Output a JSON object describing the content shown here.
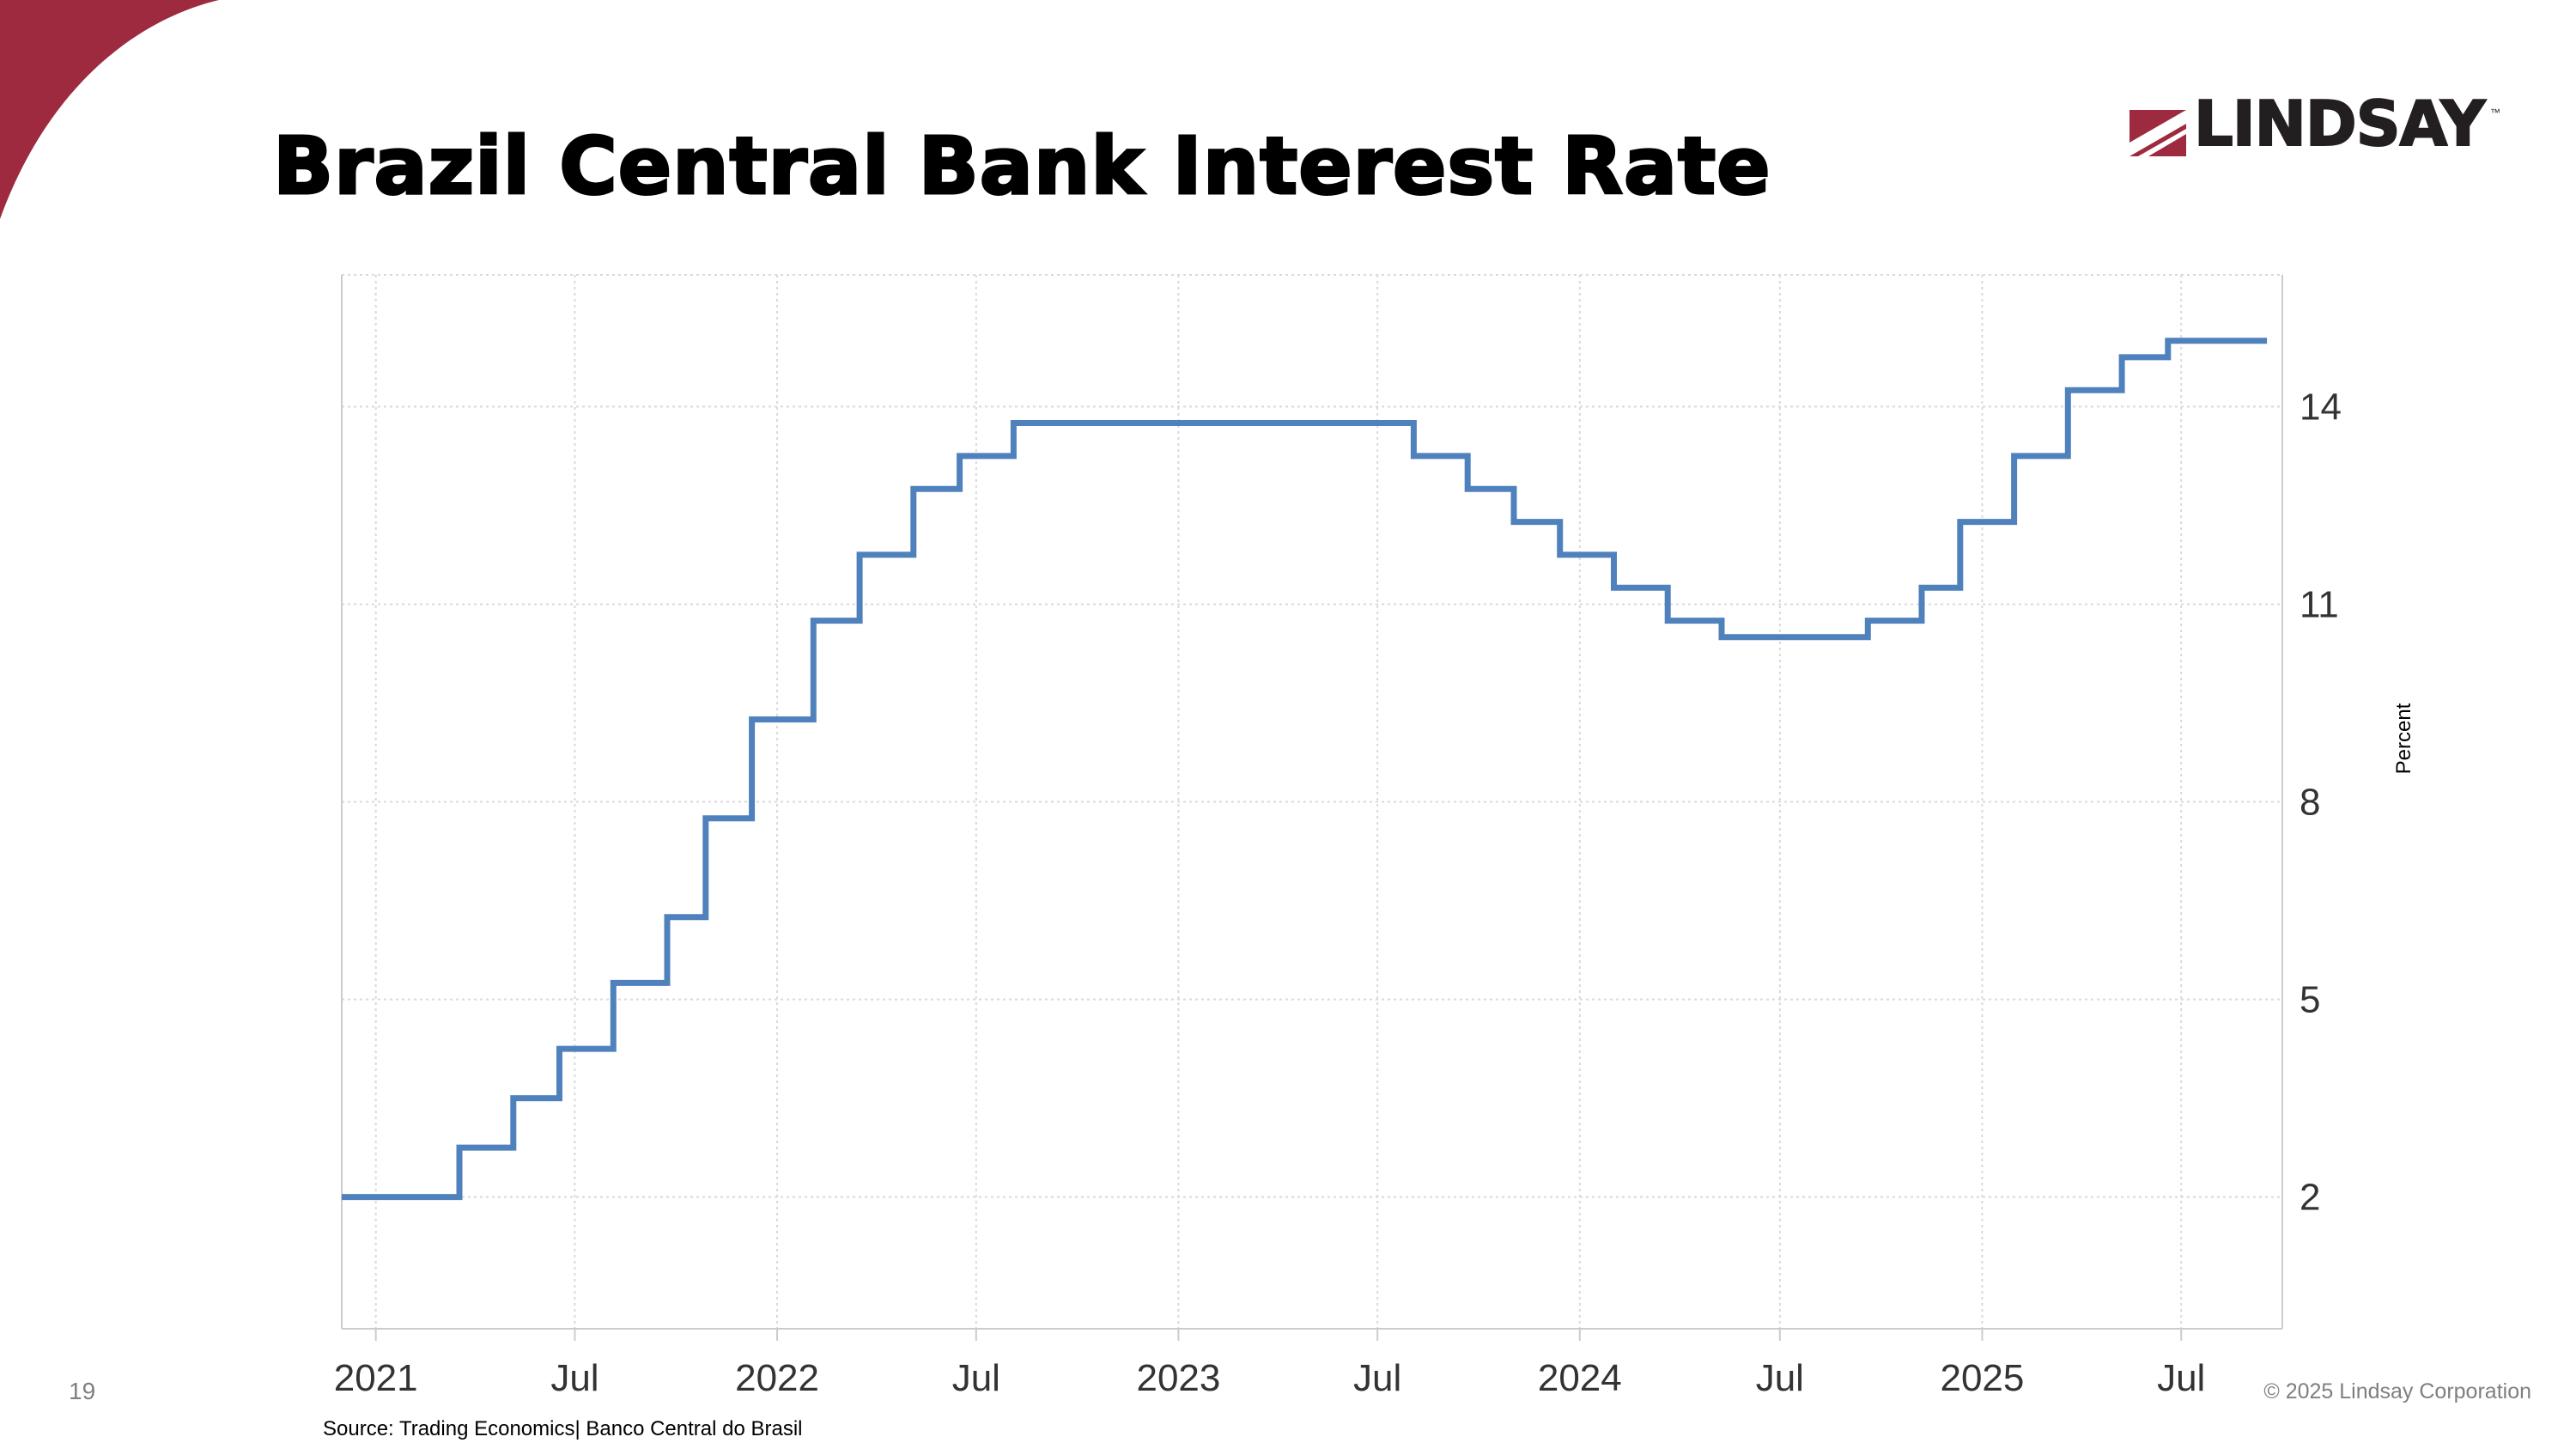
{
  "slide": {
    "title": "Brazil Central Bank Interest Rate",
    "page_number": "19",
    "copyright": "© 2025 Lindsay Corporation",
    "source": "Source: Trading Economics| Banco Central do Brasil"
  },
  "logo": {
    "text": "LINDSAY",
    "tm": "™",
    "accent_color": "#9e2a3f"
  },
  "colors": {
    "corner_accent": "#9e2a3f",
    "line": "#4f81bd",
    "grid": "#d9d9d9",
    "axis": "#cccccc"
  },
  "chart_data": {
    "type": "line",
    "step": true,
    "title": "",
    "xlabel": "",
    "ylabel": "Percent",
    "y_axis_position": "right",
    "grid": true,
    "ylim": [
      0,
      16
    ],
    "xlim": [
      "2020-12-01",
      "2025-10-01"
    ],
    "y_ticks": [
      2,
      5,
      8,
      11,
      14
    ],
    "x_ticks": [
      {
        "date": "2021-01-01",
        "label": "2021"
      },
      {
        "date": "2021-07-01",
        "label": "Jul"
      },
      {
        "date": "2022-01-01",
        "label": "2022"
      },
      {
        "date": "2022-07-01",
        "label": "Jul"
      },
      {
        "date": "2023-01-01",
        "label": "2023"
      },
      {
        "date": "2023-07-01",
        "label": "Jul"
      },
      {
        "date": "2024-01-01",
        "label": "2024"
      },
      {
        "date": "2024-07-01",
        "label": "Jul"
      },
      {
        "date": "2025-01-01",
        "label": "2025"
      },
      {
        "date": "2025-07-01",
        "label": "Jul"
      }
    ],
    "series": [
      {
        "name": "",
        "color": "#4f81bd",
        "points": [
          {
            "x": "2020-12-01",
            "y": 2.0
          },
          {
            "x": "2021-03-18",
            "y": 2.75
          },
          {
            "x": "2021-05-06",
            "y": 3.5
          },
          {
            "x": "2021-06-17",
            "y": 4.25
          },
          {
            "x": "2021-08-05",
            "y": 5.25
          },
          {
            "x": "2021-09-23",
            "y": 6.25
          },
          {
            "x": "2021-10-28",
            "y": 7.75
          },
          {
            "x": "2021-12-09",
            "y": 9.25
          },
          {
            "x": "2022-02-03",
            "y": 10.75
          },
          {
            "x": "2022-03-17",
            "y": 11.75
          },
          {
            "x": "2022-05-05",
            "y": 12.75
          },
          {
            "x": "2022-06-16",
            "y": 13.25
          },
          {
            "x": "2022-08-04",
            "y": 13.75
          },
          {
            "x": "2023-08-03",
            "y": 13.25
          },
          {
            "x": "2023-09-21",
            "y": 12.75
          },
          {
            "x": "2023-11-02",
            "y": 12.25
          },
          {
            "x": "2023-12-14",
            "y": 11.75
          },
          {
            "x": "2024-02-01",
            "y": 11.25
          },
          {
            "x": "2024-03-21",
            "y": 10.75
          },
          {
            "x": "2024-05-09",
            "y": 10.5
          },
          {
            "x": "2024-09-19",
            "y": 10.75
          },
          {
            "x": "2024-11-07",
            "y": 11.25
          },
          {
            "x": "2024-12-12",
            "y": 12.25
          },
          {
            "x": "2025-01-30",
            "y": 13.25
          },
          {
            "x": "2025-03-20",
            "y": 14.25
          },
          {
            "x": "2025-05-08",
            "y": 14.75
          },
          {
            "x": "2025-06-19",
            "y": 15.0
          },
          {
            "x": "2025-09-17",
            "y": 15.0
          }
        ]
      }
    ]
  }
}
